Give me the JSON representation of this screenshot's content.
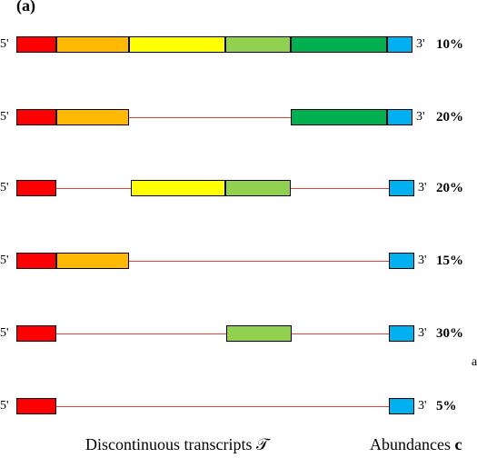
{
  "panel_label": "(a)",
  "five_prime": "5'",
  "three_prime": "3'",
  "exon_colors": [
    "#ff0000",
    "#ffb900",
    "#ffff00",
    "#92d050",
    "#00b050",
    "#00b0f0"
  ],
  "intron_color": "#e8413a",
  "transcripts": [
    {
      "exons": [
        1,
        2,
        3,
        4,
        5,
        6
      ],
      "abundance": "10%"
    },
    {
      "exons": [
        1,
        2,
        5,
        6
      ],
      "abundance": "20%"
    },
    {
      "exons": [
        1,
        3,
        4,
        6
      ],
      "abundance": "20%"
    },
    {
      "exons": [
        1,
        2,
        6
      ],
      "abundance": "15%"
    },
    {
      "exons": [
        1,
        4,
        6
      ],
      "abundance": "30%"
    },
    {
      "exons": [
        1,
        6
      ],
      "abundance": "5%"
    }
  ],
  "footer": {
    "left": "Discontinuous transcripts 𝒯",
    "right_text": "Abundances ",
    "right_bold": "c"
  },
  "stray_char": "a"
}
